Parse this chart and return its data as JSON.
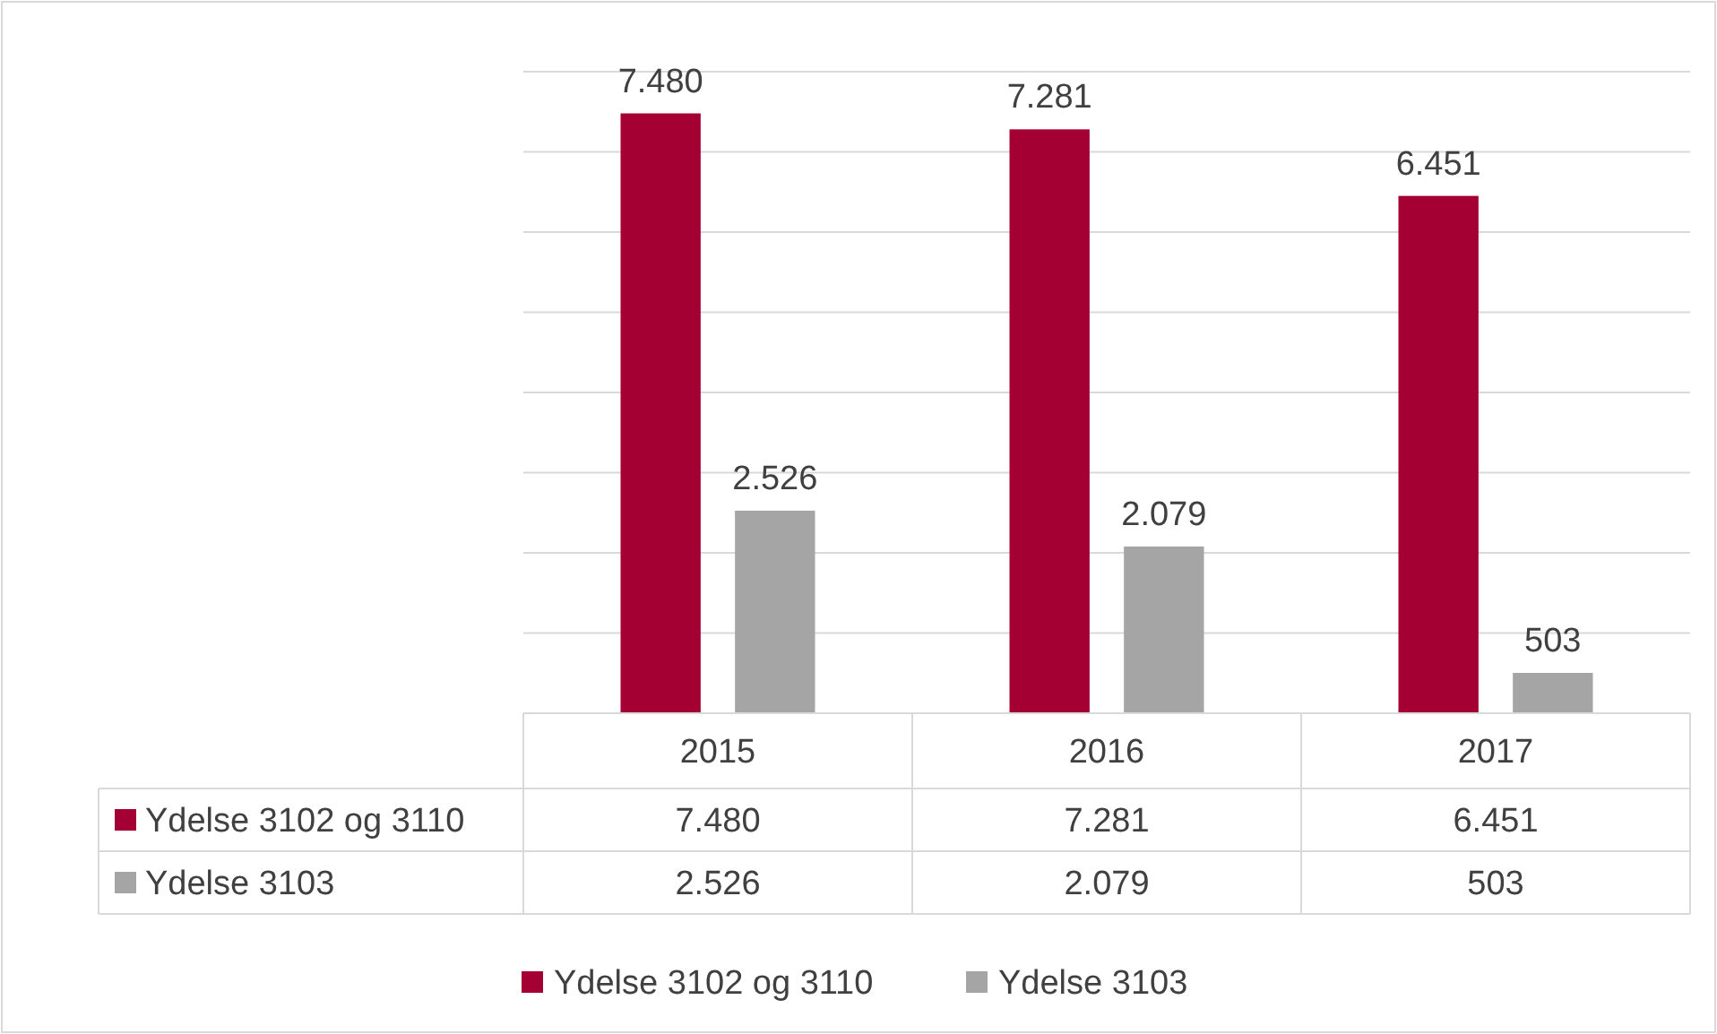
{
  "chart_data": {
    "type": "bar",
    "categories": [
      "2015",
      "2016",
      "2017"
    ],
    "series": [
      {
        "name": "Ydelse 3102 og 3110",
        "color": "#a50034",
        "values": [
          7480,
          7281,
          6451
        ],
        "value_labels": [
          "7.480",
          "7.281",
          "6.451"
        ]
      },
      {
        "name": "Ydelse 3103",
        "color": "#a5a5a5",
        "values": [
          2526,
          2079,
          503
        ],
        "value_labels": [
          "2.526",
          "2.079",
          "503"
        ]
      }
    ],
    "ylim": [
      0,
      8000
    ],
    "yticks": [
      {
        "value": 0,
        "label": null
      },
      {
        "value": 1000,
        "label": null
      },
      {
        "value": 2000,
        "label": null
      },
      {
        "value": 3000,
        "label": null
      },
      {
        "value": 4000,
        "label": null
      },
      {
        "value": 5000,
        "label": null
      },
      {
        "value": 6000,
        "label": null
      },
      {
        "value": 7000,
        "label": null
      },
      {
        "value": 8000,
        "label": null
      }
    ],
    "grid": "y",
    "legend": "bottom",
    "tick_labels": "x"
  }
}
